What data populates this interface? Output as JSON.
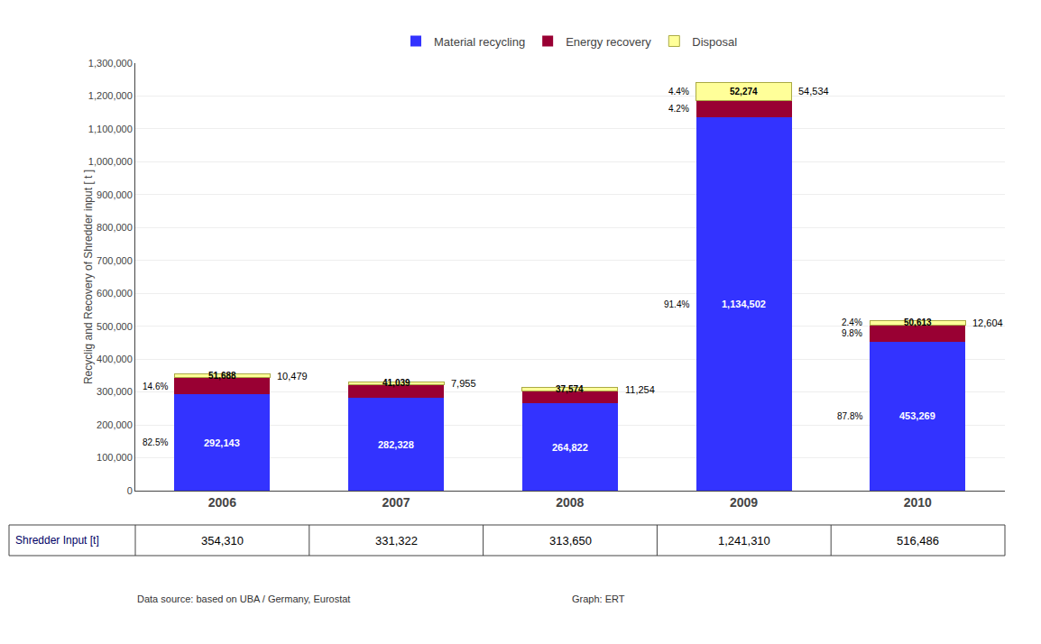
{
  "chart_data": {
    "type": "bar",
    "stacked": true,
    "categories": [
      "2006",
      "2007",
      "2008",
      "2009",
      "2010"
    ],
    "series": [
      {
        "name": "Material recycling",
        "color": "#3333FF",
        "values": [
          292143,
          282328,
          264822,
          1134502,
          453269
        ],
        "value_labels": [
          "292,143",
          "282,328",
          "264,822",
          "1,134,502",
          "453,269"
        ],
        "share_labels": [
          "82.5%",
          null,
          null,
          "91.4%",
          "87.8%"
        ]
      },
      {
        "name": "Energy recovery",
        "color": "#990033",
        "values": [
          51688,
          41039,
          37574,
          52274,
          50613
        ],
        "value_labels": [
          "51,688",
          "41,039",
          "37,574",
          "52,274",
          "50,613"
        ],
        "share_labels": [
          "14.6%",
          null,
          null,
          "4.2%",
          "9.8%"
        ]
      },
      {
        "name": "Disposal",
        "color": "#FFFF99",
        "values": [
          10479,
          7955,
          11254,
          54534,
          12604
        ],
        "value_labels": [
          "10,479",
          "7,955",
          "11,254",
          "54,534",
          "12,604"
        ],
        "share_labels": [
          null,
          null,
          null,
          "4.4%",
          "2.4%"
        ]
      }
    ],
    "ylabel": "Recyclig and Recovery of Shredder input [ t ]",
    "ylim": [
      0,
      1300000
    ],
    "yticks": [
      0,
      {
        "value": 100000,
        "label": "100,000"
      },
      {
        "value": 200000,
        "label": "200,000"
      },
      {
        "value": 300000,
        "label": "300,000"
      },
      {
        "value": 400000,
        "label": "400,000"
      },
      {
        "value": 500000,
        "label": "500,000"
      },
      {
        "value": 600000,
        "label": "600,000"
      },
      {
        "value": 700000,
        "label": "700,000"
      },
      {
        "value": 800000,
        "label": "800,000"
      },
      {
        "value": 900000,
        "label": "900,000"
      },
      {
        "value": 1000000,
        "label": "1,000,000"
      },
      {
        "value": 1100000,
        "label": "1,100,000"
      },
      {
        "value": 1200000,
        "label": "1,200,000"
      },
      {
        "value": 1300000,
        "label": "1,300,000"
      }
    ],
    "grid": true,
    "legend": "top",
    "data_labels": true,
    "table": {
      "label": "Shredder Input [t]",
      "cells": [
        "354,310",
        "331,322",
        "313,650",
        "1,241,310",
        "516,486"
      ]
    },
    "notes": [
      "Data source: based on UBA / Germany, Eurostat",
      "Graph: ERT"
    ]
  }
}
